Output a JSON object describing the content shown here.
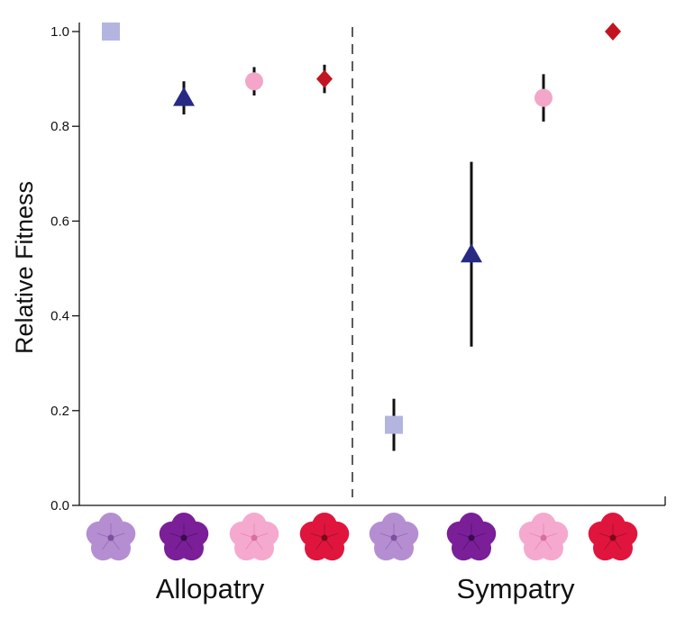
{
  "chart_data": {
    "type": "scatter",
    "ylabel": "Relative Fitness",
    "ylim": [
      0.0,
      1.0
    ],
    "yticks": [
      "0.0",
      "0.2",
      "0.4",
      "0.6",
      "0.8",
      "1.0"
    ],
    "groups": [
      {
        "label": "Allopatry"
      },
      {
        "label": "Sympatry"
      }
    ],
    "divider": "dashed vertical line between groups",
    "series": [
      {
        "marker": "square",
        "color": "#b3b5e0",
        "flower_color": "#b58ed2",
        "flower_center": "#7e4fa0",
        "flower_icon": "light-purple-flower-icon",
        "values": [
          {
            "y": 1.0,
            "err": 0.0
          },
          {
            "y": 0.17,
            "err": 0.055
          }
        ]
      },
      {
        "marker": "triangle",
        "color": "#262a83",
        "flower_color": "#7a1f98",
        "flower_center": "#3c0a4e",
        "flower_icon": "dark-purple-flower-icon",
        "values": [
          {
            "y": 0.86,
            "err": 0.035
          },
          {
            "y": 0.53,
            "err": 0.195
          }
        ]
      },
      {
        "marker": "circle",
        "color": "#f3a6c9",
        "flower_color": "#f6a9cf",
        "flower_center": "#d76f9f",
        "flower_icon": "pink-flower-icon",
        "values": [
          {
            "y": 0.895,
            "err": 0.03
          },
          {
            "y": 0.86,
            "err": 0.05
          }
        ]
      },
      {
        "marker": "diamond",
        "color": "#c21521",
        "flower_color": "#e0153d",
        "flower_center": "#7a0a18",
        "flower_icon": "red-flower-icon",
        "values": [
          {
            "y": 0.9,
            "err": 0.03
          },
          {
            "y": 1.0,
            "err": 0.0
          }
        ]
      }
    ]
  }
}
